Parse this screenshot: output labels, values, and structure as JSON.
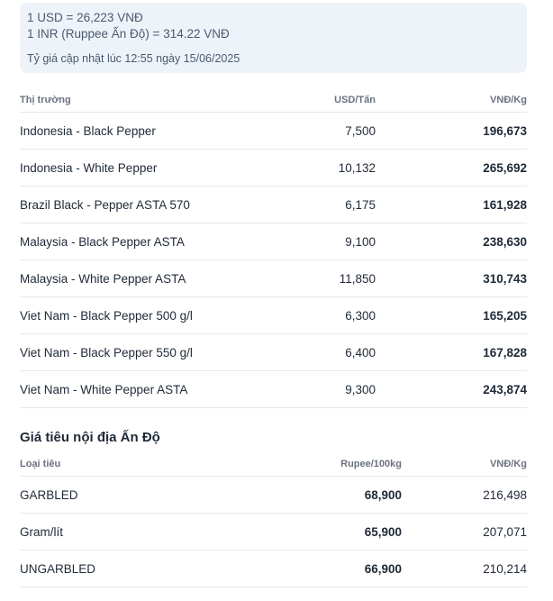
{
  "rates": {
    "usd": "1 USD = 26,223 VNĐ",
    "inr": "1 INR (Ruppee Ấn Độ) = 314.22 VNĐ",
    "updated": "Tỷ giá cập nhật lúc 12:55 ngày 15/06/2025"
  },
  "intl": {
    "headers": {
      "market": "Thị trường",
      "usd": "USD/Tấn",
      "vnd": "VNĐ/Kg"
    },
    "rows": [
      {
        "market": "Indonesia - Black Pepper",
        "usd": "7,500",
        "vnd": "196,673"
      },
      {
        "market": "Indonesia - White Pepper",
        "usd": "10,132",
        "vnd": "265,692"
      },
      {
        "market": "Brazil Black - Pepper ASTA 570",
        "usd": "6,175",
        "vnd": "161,928"
      },
      {
        "market": "Malaysia - Black Pepper ASTA",
        "usd": "9,100",
        "vnd": "238,630"
      },
      {
        "market": "Malaysia - White Pepper ASTA",
        "usd": "11,850",
        "vnd": "310,743"
      },
      {
        "market": "Viet Nam - Black Pepper 500 g/l",
        "usd": "6,300",
        "vnd": "165,205"
      },
      {
        "market": "Viet Nam - Black Pepper 550 g/l",
        "usd": "6,400",
        "vnd": "167,828"
      },
      {
        "market": "Viet Nam - White Pepper ASTA",
        "usd": "9,300",
        "vnd": "243,874"
      }
    ]
  },
  "india": {
    "title": "Giá tiêu nội địa Ấn Độ",
    "headers": {
      "type": "Loại tiêu",
      "rupee": "Rupee/100kg",
      "vnd": "VNĐ/Kg"
    },
    "rows": [
      {
        "type": "GARBLED",
        "rupee": "68,900",
        "vnd": "216,498"
      },
      {
        "type": "Gram/lít",
        "rupee": "65,900",
        "vnd": "207,071"
      },
      {
        "type": "UNGARBLED",
        "rupee": "66,900",
        "vnd": "210,214"
      }
    ]
  }
}
